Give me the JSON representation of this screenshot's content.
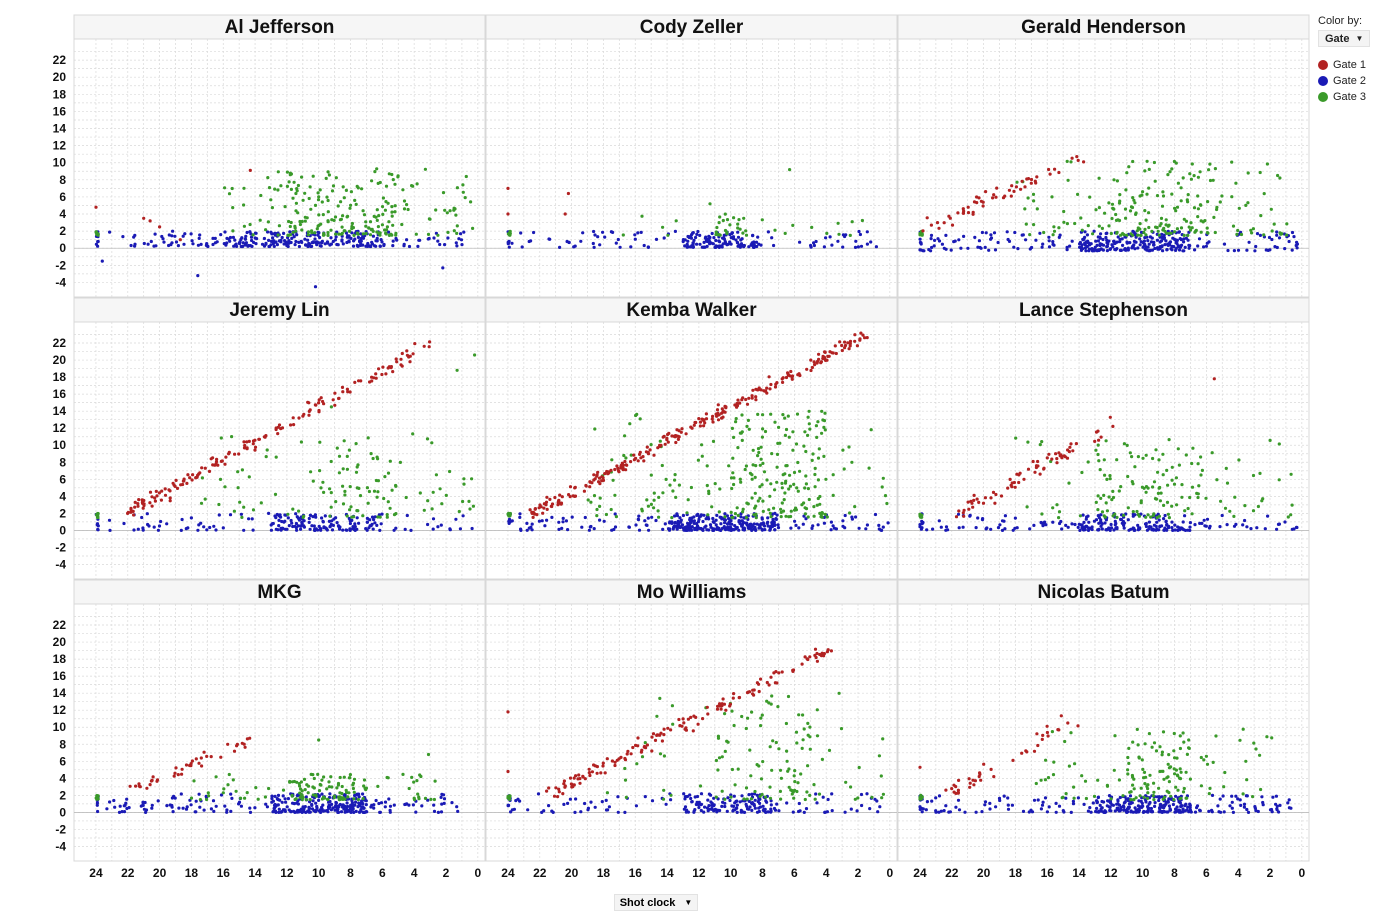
{
  "legend": {
    "title": "Color by:",
    "field": "Gate",
    "items": [
      {
        "label": "Gate 1",
        "color": "#b22222"
      },
      {
        "label": "Gate 2",
        "color": "#1a1ab5"
      },
      {
        "label": "Gate 3",
        "color": "#3a9a2a"
      }
    ]
  },
  "xaxis_label": "Shot clock",
  "chart_data": {
    "type": "scatter",
    "x_ticks": [
      24,
      22,
      20,
      18,
      16,
      14,
      12,
      10,
      8,
      6,
      4,
      2,
      0
    ],
    "y_ticks": [
      22,
      20,
      18,
      16,
      14,
      12,
      10,
      8,
      6,
      4,
      2,
      0,
      -2,
      -4
    ],
    "xlim": [
      24.5,
      -0.2
    ],
    "ylim": [
      -5,
      24
    ],
    "x_reversed": true,
    "grid": true,
    "legend_position": "top-right",
    "panels": [
      {
        "title": "Al Jefferson",
        "gate1": [
          [
            24,
            4.8
          ],
          [
            21,
            3.5
          ],
          [
            20.6,
            3.2
          ],
          [
            20,
            2.5
          ],
          [
            14.3,
            9.1
          ],
          [
            18.7,
            1.0
          ]
        ],
        "gate2": {
          "x": [
            24,
            0.6
          ],
          "y": [
            0.2,
            2.0
          ],
          "n": 280,
          "dense": [
            16,
            6
          ]
        },
        "gate3": {
          "x": [
            16,
            0.2
          ],
          "y": [
            1.5,
            9.3
          ],
          "n": 230,
          "dense": [
            12,
            5
          ]
        },
        "extra2": [
          [
            23.6,
            -1.5
          ],
          [
            17.6,
            -3.2
          ],
          [
            10.2,
            -4.5
          ],
          [
            2.2,
            -2.3
          ]
        ]
      },
      {
        "title": "Cody Zeller",
        "gate1": [
          [
            24,
            7.0
          ],
          [
            24,
            4.0
          ],
          [
            20.2,
            6.4
          ],
          [
            20.4,
            4.0
          ]
        ],
        "gate2": {
          "x": [
            24,
            0.8
          ],
          "y": [
            0.1,
            2.0
          ],
          "n": 190,
          "dense": [
            13,
            8
          ]
        },
        "gate3": {
          "x": [
            17,
            1.5
          ],
          "y": [
            1.5,
            4.0
          ],
          "n": 40,
          "dense": [
            11,
            9
          ]
        },
        "extra3": [
          [
            6.3,
            9.2
          ],
          [
            11.3,
            5.2
          ]
        ]
      },
      {
        "title": "Gerald Henderson",
        "gate1": {
          "line": [
            [
              23.5,
              2.5
            ],
            [
              13.5,
              10.8
            ]
          ],
          "n": 55,
          "spread": 1.8
        },
        "gate2": {
          "x": [
            24,
            0.2
          ],
          "y": [
            -0.3,
            2.0
          ],
          "n": 330,
          "dense": [
            14,
            7
          ]
        },
        "gate3": {
          "x": [
            18,
            0.5
          ],
          "y": [
            1.5,
            10.2
          ],
          "n": 210,
          "dense": [
            12,
            5
          ]
        }
      },
      {
        "title": "Jeremy Lin",
        "gate1": {
          "line": [
            [
              22,
              2.0
            ],
            [
              3,
              22.0
            ]
          ],
          "n": 165,
          "spread": 1.6
        },
        "gate2": {
          "x": [
            24,
            0.2
          ],
          "y": [
            0.0,
            2.0
          ],
          "n": 190,
          "dense": [
            13,
            6
          ]
        },
        "gate3": {
          "x": [
            18,
            0.2
          ],
          "y": [
            1.5,
            12.0
          ],
          "n": 120,
          "dense": [
            10,
            5
          ]
        },
        "extra3": [
          [
            0.2,
            20.6
          ],
          [
            1.3,
            18.8
          ],
          [
            9.2,
            14.5
          ]
        ]
      },
      {
        "title": "Kemba Walker",
        "gate1": {
          "line": [
            [
              22.5,
              2.0
            ],
            [
              1.5,
              23.0
            ]
          ],
          "n": 260,
          "spread": 1.4
        },
        "gate2": {
          "x": [
            24,
            0.1
          ],
          "y": [
            0.0,
            2.0
          ],
          "n": 330,
          "dense": [
            14,
            7
          ]
        },
        "gate3": {
          "x": [
            19,
            0.1
          ],
          "y": [
            1.5,
            14.0
          ],
          "n": 260,
          "dense": [
            10,
            4
          ]
        }
      },
      {
        "title": "Lance Stephenson",
        "gate1": {
          "line": [
            [
              21.5,
              2.0
            ],
            [
              11.3,
              13.0
            ]
          ],
          "n": 70,
          "spread": 1.8
        },
        "gate2": {
          "x": [
            24,
            0.2
          ],
          "y": [
            0.0,
            2.0
          ],
          "n": 230,
          "dense": [
            14,
            7
          ]
        },
        "gate3": {
          "x": [
            18,
            0.6
          ],
          "y": [
            1.5,
            11.0
          ],
          "n": 150,
          "dense": [
            13,
            6
          ]
        },
        "extra1": [
          [
            5.5,
            17.8
          ]
        ]
      },
      {
        "title": "MKG",
        "gate1": {
          "line": [
            [
              21.8,
              2.5
            ],
            [
              14.5,
              8.5
            ]
          ],
          "n": 40,
          "spread": 1.2
        },
        "gate2": {
          "x": [
            24,
            0.9
          ],
          "y": [
            0.0,
            2.2
          ],
          "n": 330,
          "dense": [
            13,
            7
          ]
        },
        "gate3": {
          "x": [
            18,
            2.5
          ],
          "y": [
            1.5,
            4.5
          ],
          "n": 130,
          "dense": [
            12,
            7
          ]
        },
        "extra3": [
          [
            10,
            8.5
          ],
          [
            3.1,
            6.8
          ]
        ]
      },
      {
        "title": "Mo Williams",
        "gate1": {
          "line": [
            [
              21.5,
              2.0
            ],
            [
              3.5,
              19.5
            ]
          ],
          "n": 150,
          "spread": 1.7
        },
        "gate2": {
          "x": [
            24,
            0.2
          ],
          "y": [
            0.0,
            2.2
          ],
          "n": 200,
          "dense": [
            13,
            7
          ]
        },
        "gate3": {
          "x": [
            18,
            0.2
          ],
          "y": [
            1.5,
            14.0
          ],
          "n": 130,
          "dense": [
            11,
            5
          ]
        },
        "extra1": [
          [
            24,
            11.8
          ],
          [
            24,
            4.8
          ]
        ]
      },
      {
        "title": "Nicolas Batum",
        "gate1": {
          "line": [
            [
              22.5,
              2.0
            ],
            [
              13.5,
              12.0
            ]
          ],
          "n": 40,
          "spread": 2.0
        },
        "gate2": {
          "x": [
            24,
            0.6
          ],
          "y": [
            0.0,
            2.0
          ],
          "n": 330,
          "dense": [
            13,
            7
          ]
        },
        "gate3": {
          "x": [
            17,
            1.5
          ],
          "y": [
            1.5,
            9.9
          ],
          "n": 150,
          "dense": [
            11,
            7
          ]
        },
        "extra1": [
          [
            24,
            5.3
          ]
        ]
      }
    ]
  }
}
